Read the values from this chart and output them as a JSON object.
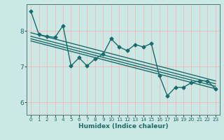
{
  "xlabel": "Humidex (Indice chaleur)",
  "bg_color": "#cce8e4",
  "line_color": "#1a6b6b",
  "grid_color": "#f5b8b8",
  "xlim": [
    -0.5,
    23.5
  ],
  "ylim": [
    5.65,
    8.75
  ],
  "yticks": [
    6,
    7,
    8
  ],
  "xticks": [
    0,
    1,
    2,
    3,
    4,
    5,
    6,
    7,
    8,
    9,
    10,
    11,
    12,
    13,
    14,
    15,
    16,
    17,
    18,
    19,
    20,
    21,
    22,
    23
  ],
  "data_x": [
    0,
    1,
    2,
    3,
    4,
    5,
    6,
    7,
    8,
    9,
    10,
    11,
    12,
    13,
    14,
    15,
    16,
    17,
    18,
    19,
    20,
    21,
    22,
    23
  ],
  "data_y": [
    8.55,
    7.9,
    7.85,
    7.82,
    8.15,
    7.02,
    7.25,
    7.02,
    7.22,
    7.35,
    7.78,
    7.55,
    7.45,
    7.62,
    7.55,
    7.65,
    6.75,
    6.18,
    6.42,
    6.42,
    6.55,
    6.6,
    6.6,
    6.38
  ],
  "reg_lines": [
    [
      [
        0,
        23
      ],
      [
        7.95,
        6.6
      ]
    ],
    [
      [
        0,
        23
      ],
      [
        7.85,
        6.52
      ]
    ],
    [
      [
        0,
        23
      ],
      [
        7.78,
        6.45
      ]
    ],
    [
      [
        0,
        23
      ],
      [
        7.72,
        6.38
      ]
    ]
  ],
  "marker_size": 2.5,
  "line_width": 1.0
}
